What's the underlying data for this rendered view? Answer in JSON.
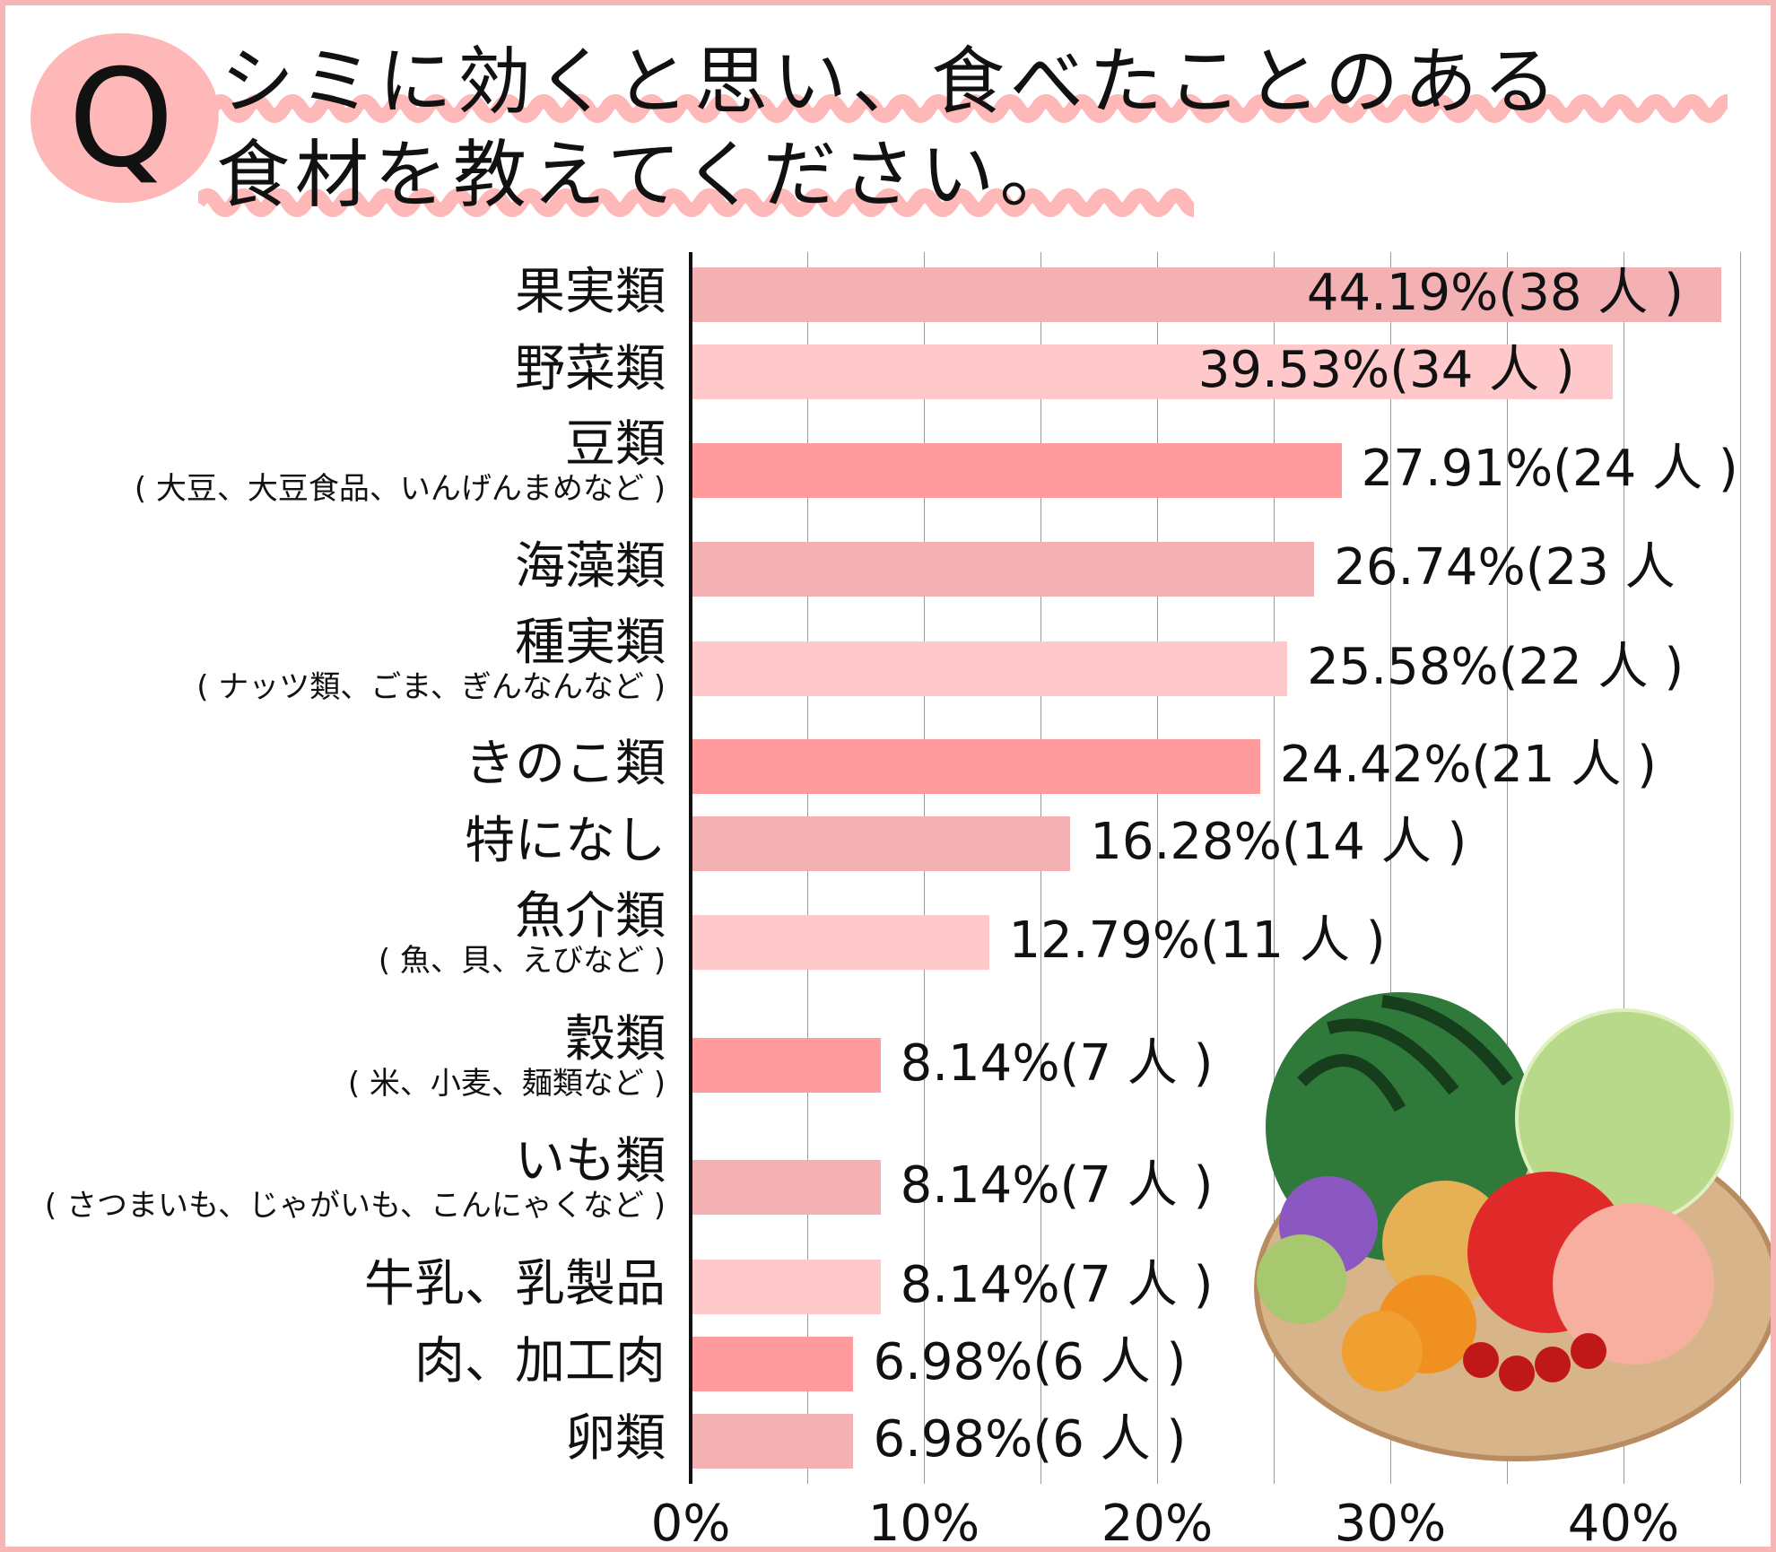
{
  "title": {
    "q": "Q",
    "line1": "シミに効くと思い、食べたことのある",
    "line2": "食材を教えてください。"
  },
  "chart_data": {
    "type": "bar",
    "orientation": "horizontal",
    "title": "シミに効くと思い、食べたことのある食材を教えてください。",
    "xlim": [
      0,
      45
    ],
    "grid": true,
    "x_ticks": [
      "0%",
      "10%",
      "20%",
      "30%",
      "40%"
    ],
    "categories": [
      {
        "label": "果実類",
        "sub": "",
        "value": 44.19,
        "count": 38,
        "text": "44.19%(38 人 )"
      },
      {
        "label": "野菜類",
        "sub": "",
        "value": 39.53,
        "count": 34,
        "text": "39.53%(34 人 )"
      },
      {
        "label": "豆類",
        "sub": "( 大豆、大豆食品、いんげんまめなど )",
        "value": 27.91,
        "count": 24,
        "text": "27.91%(24 人 )"
      },
      {
        "label": "海藻類",
        "sub": "",
        "value": 26.74,
        "count": 23,
        "text": "26.74%(23 人"
      },
      {
        "label": "種実類",
        "sub": "( ナッツ類、ごま、ぎんなんなど )",
        "value": 25.58,
        "count": 22,
        "text": "25.58%(22 人 )"
      },
      {
        "label": "きのこ類",
        "sub": "",
        "value": 24.42,
        "count": 21,
        "text": "24.42%(21 人 )"
      },
      {
        "label": "特になし",
        "sub": "",
        "value": 16.28,
        "count": 14,
        "text": "16.28%(14 人 )"
      },
      {
        "label": "魚介類",
        "sub": "( 魚、貝、えびなど )",
        "value": 12.79,
        "count": 11,
        "text": "12.79%(11 人 )"
      },
      {
        "label": "穀類",
        "sub": "( 米、小麦、麺類など )",
        "value": 8.14,
        "count": 7,
        "text": "8.14%(7 人 )"
      },
      {
        "label": "いも類",
        "sub": "( さつまいも、じゃがいも、こんにゃくなど )",
        "value": 8.14,
        "count": 7,
        "text": "8.14%(7 人 )"
      },
      {
        "label": "牛乳、乳製品",
        "sub": "",
        "value": 8.14,
        "count": 7,
        "text": "8.14%(7 人 )"
      },
      {
        "label": "肉、加工肉",
        "sub": "",
        "value": 6.98,
        "count": 6,
        "text": "6.98%(6 人 )"
      },
      {
        "label": "卵類",
        "sub": "",
        "value": 6.98,
        "count": 6,
        "text": "6.98%(6 人 )"
      }
    ],
    "colors": [
      "#f4b1b3",
      "#ffc9cb",
      "#ff9b9c"
    ]
  }
}
